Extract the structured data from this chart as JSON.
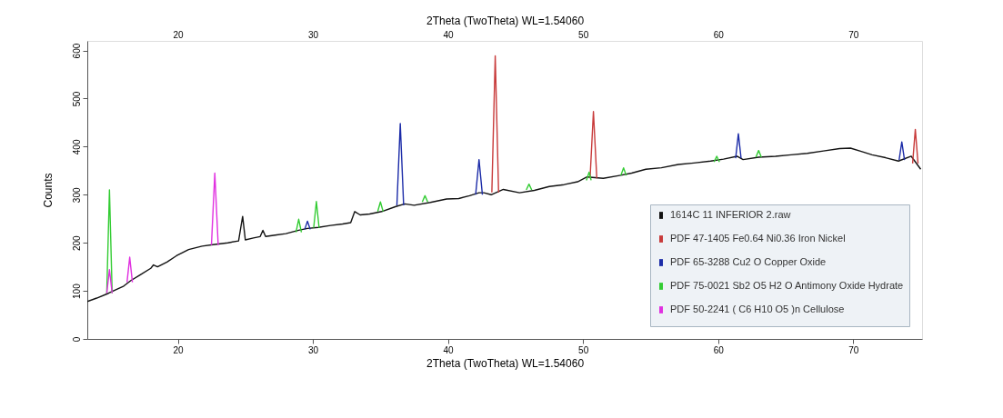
{
  "chart_data": {
    "type": "line",
    "xlabel": "2Theta (TwoTheta) WL=1.54060",
    "x2label": "2Theta (TwoTheta) WL=1.54060",
    "ylabel": "Counts",
    "xlim": [
      13.3,
      75.1
    ],
    "xticks": [
      20,
      30,
      40,
      50,
      60,
      70
    ],
    "x2lim": [
      13.3,
      75.1
    ],
    "x2ticks": [
      20,
      30,
      40,
      50,
      60,
      70
    ],
    "ylim": [
      0,
      620
    ],
    "yticks": [
      0,
      100,
      200,
      300,
      400,
      500,
      600
    ],
    "grid": false,
    "legend": "bottom right",
    "series": [
      {
        "name": "1614C 11 INFERIOR 2.raw",
        "color": "#111111",
        "x": [
          13.3,
          14.0,
          14.87,
          15.3,
          16.0,
          16.5,
          17.2,
          18.0,
          18.2,
          18.5,
          19.2,
          19.9,
          20.8,
          21.8,
          22.6,
          23.7,
          24.5,
          24.8,
          25.0,
          25.6,
          26.1,
          26.3,
          26.5,
          27.2,
          28.0,
          28.95,
          29.6,
          30.4,
          31.3,
          32.2,
          32.8,
          33.1,
          33.5,
          34.2,
          35.1,
          36.1,
          36.8,
          37.5,
          38.7,
          39.9,
          40.8,
          41.6,
          42.3,
          42.66,
          43.2,
          44.1,
          45.3,
          46.4,
          47.5,
          48.6,
          49.6,
          50.3,
          51.5,
          52.7,
          53.6,
          54.65,
          55.8,
          57.05,
          58.2,
          59.45,
          60.4,
          61.4,
          61.85,
          63.0,
          64.25,
          65.4,
          66.6,
          67.8,
          69.0,
          69.8,
          70.6,
          71.4,
          72.4,
          73.35,
          74.3,
          75.0
        ],
        "values": [
          78,
          85,
          95,
          101,
          110,
          121,
          133,
          147,
          154,
          150,
          160,
          173,
          186,
          193,
          196,
          200,
          204,
          255,
          206,
          210,
          213,
          226,
          213,
          216,
          219,
          226,
          230,
          232,
          236,
          239,
          242,
          265,
          258,
          260,
          265,
          275,
          281,
          278,
          284,
          291,
          292,
          298,
          304,
          304,
          300,
          311,
          304,
          309,
          317,
          321,
          327,
          337,
          334,
          340,
          345,
          353,
          356,
          363,
          366,
          370,
          374,
          380,
          373,
          378,
          380,
          383,
          386,
          391,
          396,
          397,
          390,
          383,
          377,
          370,
          380,
          353
        ]
      },
      {
        "name": "PDF 47-1405 Fe0.64 Ni0.36 Iron Nickel",
        "color": "#c83a3a",
        "x": [
          43.25,
          43.5,
          43.75,
          43.8,
          50.52,
          50.77,
          51.02,
          51.1,
          74.4,
          74.6,
          74.8
        ],
        "values": [
          305,
          589,
          305,
          null,
          334,
          473,
          334,
          null,
          365,
          436,
          365
        ]
      },
      {
        "name": "PDF 65-3288 Cu2 O Copper Oxide",
        "color": "#1c2ca8",
        "x": [
          29.4,
          29.6,
          29.8,
          29.9,
          36.22,
          36.47,
          36.72,
          36.8,
          42.05,
          42.3,
          42.55,
          42.6,
          61.3,
          61.5,
          61.7,
          61.8,
          73.4,
          73.6,
          73.8
        ],
        "values": [
          228,
          245,
          228,
          null,
          278,
          448,
          278,
          null,
          300,
          373,
          300,
          null,
          376,
          427,
          376,
          null,
          372,
          410,
          372
        ]
      },
      {
        "name": "PDF 75-0021 Sb2 O5 H2 O Antimony Oxide Hydrate",
        "color": "#33cc33",
        "x": [
          14.74,
          14.94,
          15.14,
          15.2,
          28.75,
          28.95,
          29.15,
          29.2,
          30.06,
          30.26,
          30.46,
          30.5,
          34.8,
          35.0,
          35.2,
          35.3,
          38.1,
          38.3,
          38.5,
          38.6,
          45.8,
          46.0,
          46.2,
          46.3,
          50.25,
          50.45,
          50.6,
          50.65,
          52.8,
          53.0,
          53.2,
          53.3,
          59.7,
          59.9,
          60.1,
          60.2,
          62.8,
          63.0,
          63.2
        ],
        "values": [
          95,
          310,
          95,
          null,
          222,
          249,
          222,
          null,
          231,
          286,
          231,
          null,
          265,
          285,
          265,
          null,
          285,
          298,
          285,
          null,
          310,
          322,
          310,
          null,
          330,
          347,
          330,
          null,
          340,
          356,
          340,
          null,
          368,
          380,
          368,
          null,
          378,
          392,
          378
        ]
      },
      {
        "name": "PDF 50-2241 ( C6 H10 O5 )n Cellulose",
        "color": "#e030e0",
        "x": [
          14.74,
          14.94,
          15.14,
          15.2,
          16.24,
          16.44,
          16.64,
          16.7,
          22.49,
          22.74,
          22.99
        ],
        "values": [
          95,
          144,
          95,
          null,
          118,
          170,
          118,
          null,
          195,
          345,
          195
        ]
      }
    ]
  }
}
